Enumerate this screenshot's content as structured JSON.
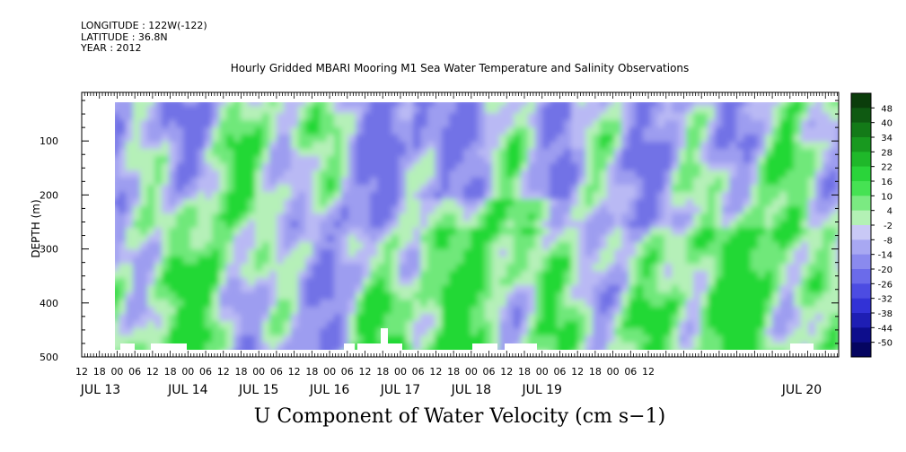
{
  "header": {
    "longitude": "LONGITUDE : 122W(-122)",
    "latitude": "LATITUDE : 36.8N",
    "year": "YEAR : 2012"
  },
  "chart_data": {
    "type": "heatmap",
    "title": "Hourly Gridded MBARI Mooring M1 Sea Water Temperature and Salinity Observations",
    "xlabel": "U Component of Water Velocity (cm s−1)",
    "ylabel": "DEPTH (m)",
    "y_ticks": [
      100,
      200,
      300,
      400,
      500
    ],
    "ylim": [
      500,
      10
    ],
    "x_hour_ticks": [
      "12",
      "18",
      "00",
      "06",
      "12",
      "18",
      "00",
      "06",
      "12",
      "18",
      "00",
      "06",
      "12",
      "18",
      "00",
      "06",
      "12",
      "18",
      "00",
      "06",
      "12",
      "18",
      "00",
      "06",
      "12",
      "18",
      "00",
      "06",
      "12",
      "18",
      "00",
      "06",
      "12"
    ],
    "x_day_labels": [
      "JUL 13",
      "JUL 14",
      "JUL 15",
      "JUL 16",
      "JUL 17",
      "JUL 18",
      "JUL 19",
      "JUL 20"
    ],
    "colorbar": {
      "levels": [
        48,
        40,
        34,
        28,
        22,
        16,
        10,
        4,
        -2,
        -8,
        -14,
        -20,
        -26,
        -32,
        -38,
        -44,
        -50
      ],
      "colors": [
        "#0b3d0b",
        "#0f5a12",
        "#137a18",
        "#18991f",
        "#1fb82a",
        "#2ad43a",
        "#46e253",
        "#7bea82",
        "#b3f1b5",
        "#c9c9f6",
        "#a8a8f2",
        "#8a8aee",
        "#6b6bea",
        "#4c4ce2",
        "#3232d6",
        "#1e1eb4",
        "#0d0d8c",
        "#050560"
      ],
      "anomaly_colors": {
        "strong_neg": "#7272e6",
        "neg": "#9d9df0",
        "weak_neg": "#b9b9f4",
        "weak_pos": "#b5f0b8",
        "pos": "#6fe87a",
        "strong_pos": "#22d836"
      }
    },
    "grid": false,
    "legend": "colorbar-right"
  }
}
